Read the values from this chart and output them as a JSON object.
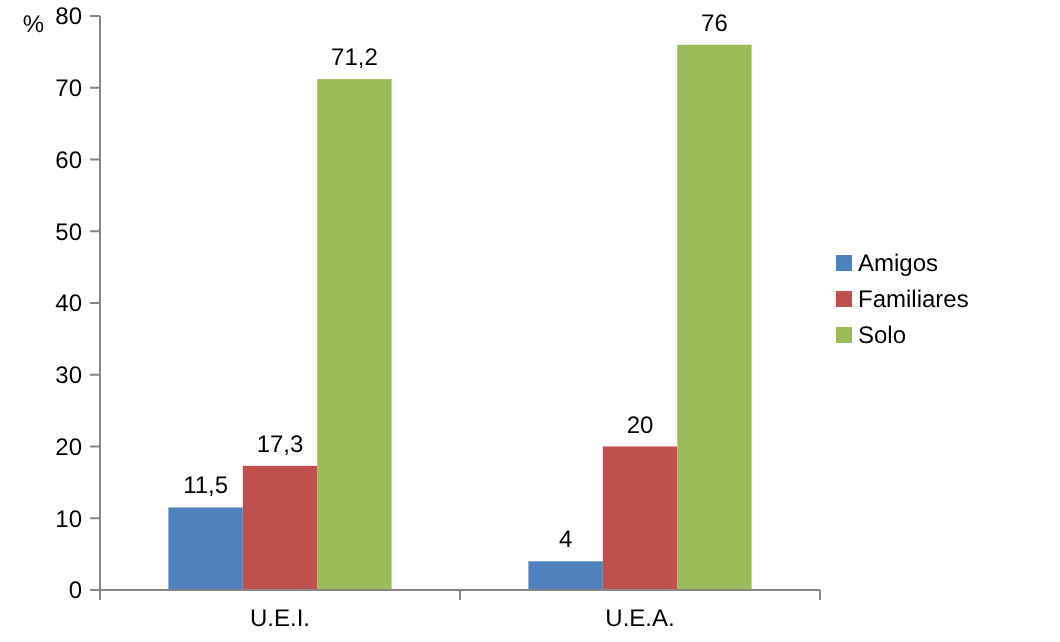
{
  "chart_data": {
    "type": "bar",
    "ylabel": "%",
    "categories": [
      "U.E.I.",
      "U.E.A."
    ],
    "series": [
      {
        "name": "Amigos",
        "color": "#4f81bd",
        "values": [
          11.5,
          4
        ],
        "value_labels": [
          "11,5",
          "4"
        ]
      },
      {
        "name": "Familiares",
        "color": "#c0504d",
        "values": [
          17.3,
          20
        ],
        "value_labels": [
          "17,3",
          "20"
        ]
      },
      {
        "name": "Solo",
        "color": "#9bbb59",
        "values": [
          71.2,
          76
        ],
        "value_labels": [
          "71,2",
          "76"
        ]
      }
    ],
    "ylim": [
      0,
      80
    ],
    "yticks": [
      0,
      10,
      20,
      30,
      40,
      50,
      60,
      70,
      80
    ],
    "grid": false,
    "legend": "right"
  }
}
